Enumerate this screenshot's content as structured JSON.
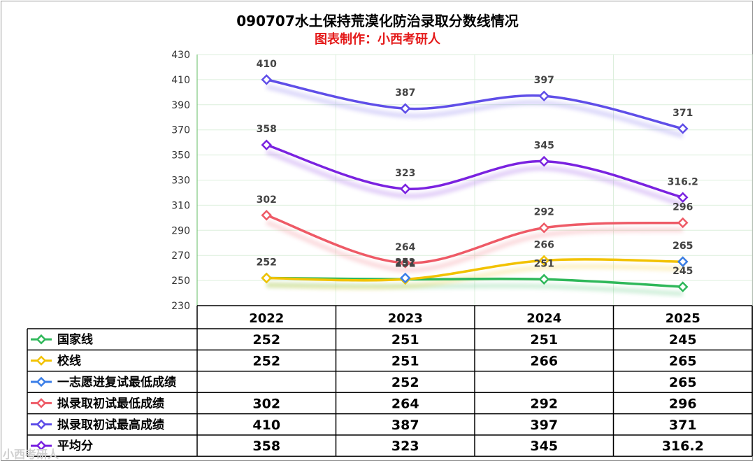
{
  "chart_data": {
    "type": "line",
    "title": "090707水土保持荒漠化防治录取分数线情况",
    "subtitle": "图表制作：小西考研人",
    "categories": [
      "2022",
      "2023",
      "2024",
      "2025"
    ],
    "ylim": [
      230,
      430
    ],
    "yticks": [
      230,
      250,
      270,
      290,
      310,
      330,
      350,
      370,
      390,
      410,
      430
    ],
    "grid": true,
    "legend": "table-below",
    "series": [
      {
        "name": "国家线",
        "color": "#2fb85a",
        "values": [
          252,
          251,
          251,
          245
        ],
        "labels": [
          "252",
          "251",
          "251",
          "245"
        ]
      },
      {
        "name": "校线",
        "color": "#f2c200",
        "values": [
          252,
          251,
          266,
          265
        ],
        "labels": [
          "252",
          "251",
          "266",
          "265"
        ]
      },
      {
        "name": "一志愿进复试最低成绩",
        "color": "#3a7ee8",
        "values": [
          null,
          252,
          null,
          265
        ],
        "labels": [
          "",
          "252",
          "",
          "265"
        ]
      },
      {
        "name": "拟录取初试最低成绩",
        "color": "#ee5a66",
        "values": [
          302,
          264,
          292,
          296
        ],
        "labels": [
          "302",
          "264",
          "292",
          "296"
        ]
      },
      {
        "name": "拟录取初试最高成绩",
        "color": "#5f4ee8",
        "values": [
          410,
          387,
          397,
          371
        ],
        "labels": [
          "410",
          "387",
          "397",
          "371"
        ]
      },
      {
        "name": "平均分",
        "color": "#7a22e0",
        "values": [
          358,
          323,
          345,
          316.2
        ],
        "labels": [
          "358",
          "323",
          "345",
          "316.2"
        ]
      }
    ]
  },
  "watermark": "小西考研人"
}
